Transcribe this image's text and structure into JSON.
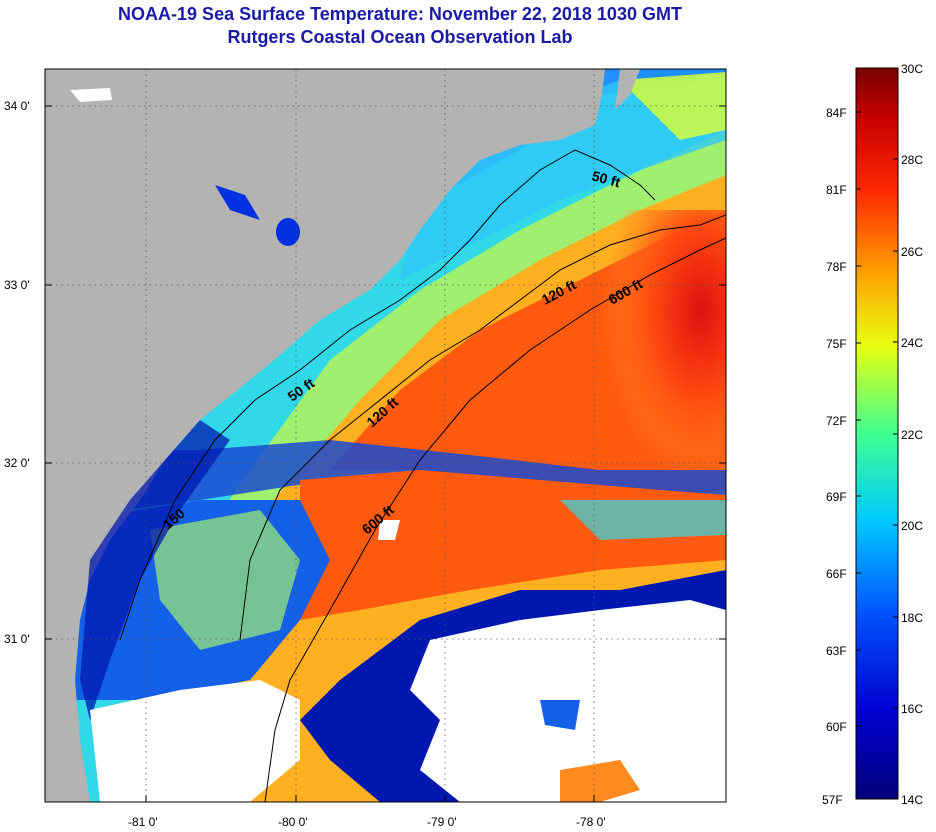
{
  "header": {
    "title": "NOAA-19 Sea Surface Temperature:  November 22, 2018 1030 GMT",
    "subtitle": "Rutgers Coastal Ocean Observation Lab"
  },
  "map": {
    "longitude_labels": [
      "-81 0'",
      "-80 0'",
      "-79 0'",
      "-78 0'"
    ],
    "latitude_labels": [
      "34 0'",
      "33 0'",
      "32 0'",
      "31 0'"
    ],
    "contour_labels": [
      "50 ft",
      "120 ft",
      "600 ft",
      "50 ft",
      "120 ft",
      "600 ft",
      "150"
    ]
  },
  "colorbar": {
    "celsius_labels": [
      "30C",
      "28C",
      "26C",
      "24C",
      "22C",
      "20C",
      "18C",
      "16C",
      "14C"
    ],
    "fahrenheit_labels": [
      "84F",
      "81F",
      "78F",
      "75F",
      "72F",
      "69F",
      "66F",
      "63F",
      "60F",
      "57F"
    ]
  },
  "colors": {
    "title": "#1a1aa6",
    "land": "#b3b3b3",
    "cloud": "#ffffff"
  }
}
